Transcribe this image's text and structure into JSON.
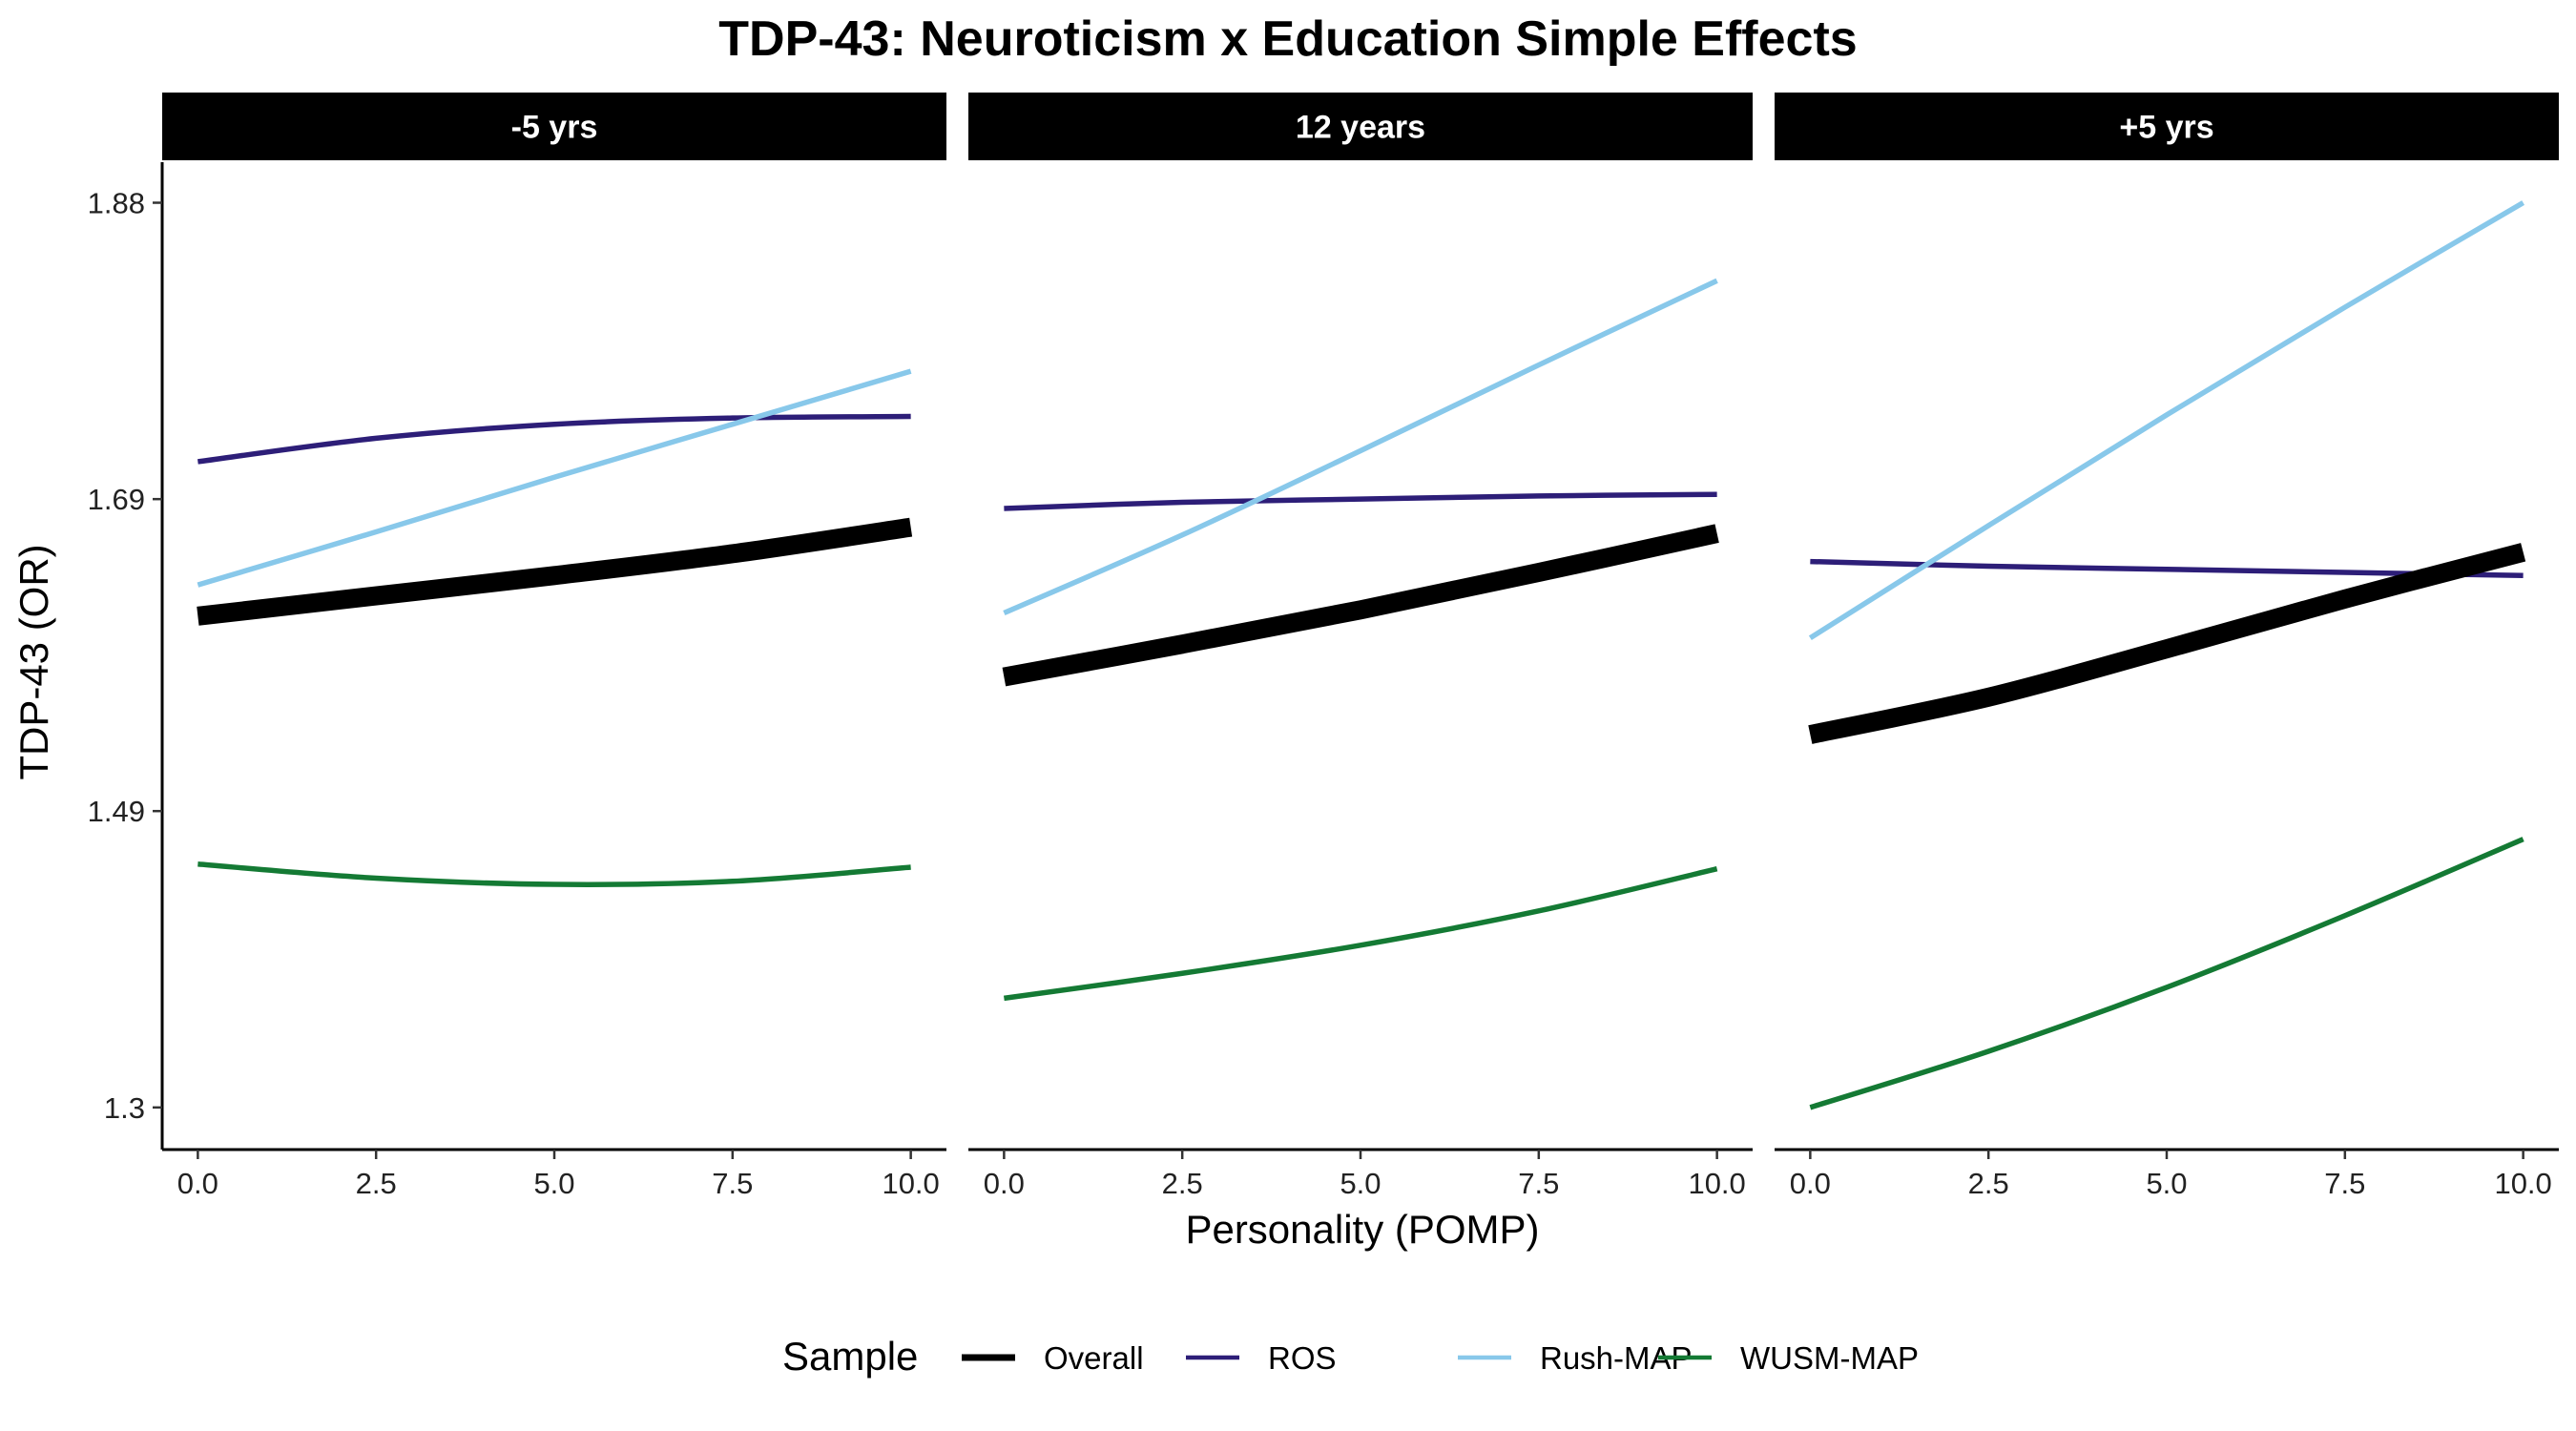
{
  "chart_data": {
    "type": "line",
    "title": "TDP-43: Neuroticism x Education Simple Effects",
    "xlabel": "Personality (POMP)",
    "ylabel": "TDP-43 (OR)",
    "xlim": [
      -0.5,
      10.5
    ],
    "ylim": [
      1.273,
      1.906
    ],
    "x_ticks": [
      0,
      2.5,
      5,
      7.5,
      10
    ],
    "x_tick_labels": [
      "0.0",
      "2.5",
      "5.0",
      "7.5",
      "10.0"
    ],
    "y_ticks": [
      1.3,
      1.49,
      1.69,
      1.88
    ],
    "y_tick_labels": [
      "1.3",
      "1.49",
      "1.69",
      "1.88"
    ],
    "grid": false,
    "legend": {
      "title": "Sample",
      "position": "bottom",
      "entries": [
        "Overall",
        "ROS",
        "Rush-MAP",
        "WUSM-MAP"
      ]
    },
    "series_colors": {
      "Overall": "#000000",
      "ROS": "#2d1e78",
      "Rush-MAP": "#88c8ea",
      "WUSM-MAP": "#147a34"
    },
    "x": [
      0,
      2.5,
      5,
      7.5,
      10
    ],
    "panels": [
      {
        "label": "-5 yrs",
        "series": [
          {
            "name": "ROS",
            "values": [
              1.714,
              1.729,
              1.738,
              1.742,
              1.743
            ]
          },
          {
            "name": "Rush-MAP",
            "values": [
              1.635,
              1.669,
              1.704,
              1.738,
              1.772
            ]
          },
          {
            "name": "Overall",
            "values": [
              1.615,
              1.628,
              1.641,
              1.655,
              1.672
            ]
          },
          {
            "name": "WUSM-MAP",
            "values": [
              1.456,
              1.447,
              1.443,
              1.445,
              1.454
            ]
          }
        ]
      },
      {
        "label": "12 years",
        "series": [
          {
            "name": "ROS",
            "values": [
              1.684,
              1.688,
              1.69,
              1.692,
              1.693
            ]
          },
          {
            "name": "Rush-MAP",
            "values": [
              1.617,
              1.667,
              1.721,
              1.776,
              1.83
            ]
          },
          {
            "name": "Overall",
            "values": [
              1.576,
              1.597,
              1.619,
              1.643,
              1.668
            ]
          },
          {
            "name": "WUSM-MAP",
            "values": [
              1.37,
              1.386,
              1.404,
              1.426,
              1.453
            ]
          }
        ]
      },
      {
        "label": "+5 yrs",
        "series": [
          {
            "name": "ROS",
            "values": [
              1.65,
              1.647,
              1.645,
              1.643,
              1.641
            ]
          },
          {
            "name": "Rush-MAP",
            "values": [
              1.601,
              1.673,
              1.744,
              1.813,
              1.88
            ]
          },
          {
            "name": "Overall",
            "values": [
              1.539,
              1.563,
              1.594,
              1.626,
              1.656
            ]
          },
          {
            "name": "WUSM-MAP",
            "values": [
              1.3,
              1.336,
              1.377,
              1.423,
              1.472
            ]
          }
        ]
      }
    ]
  }
}
